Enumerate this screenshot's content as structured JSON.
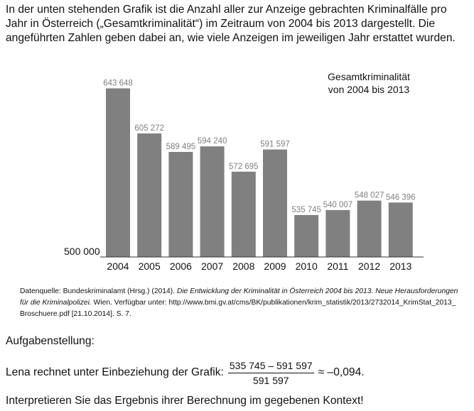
{
  "intro_text": "In der unten stehenden Grafik ist die Anzahl aller zur Anzeige gebrachten Kriminalfälle pro Jahr in Österreich („Gesamtkriminalität“) im Zeitraum von 2004 bis 2013 dargestellt. Die angeführten Zahlen geben dabei an, wie viele Anzeigen im jeweiligen Jahr erstattet wurden.",
  "chart_data": {
    "type": "bar",
    "title_lines": [
      "Gesamtkriminalität",
      "von 2004 bis 2013"
    ],
    "categories": [
      "2004",
      "2005",
      "2006",
      "2007",
      "2008",
      "2009",
      "2010",
      "2011",
      "2012",
      "2013"
    ],
    "values": [
      643648,
      605272,
      589495,
      594240,
      572695,
      591597,
      535745,
      540007,
      548027,
      546396
    ],
    "value_labels": [
      "643 648",
      "605 272",
      "589 495",
      "594 240",
      "572 695",
      "591 597",
      "535 745",
      "540 007",
      "548 027",
      "546 396"
    ],
    "baseline_label": "500 000",
    "ylim": [
      500000,
      650000
    ],
    "bar_color": "#808080",
    "label_color": "#808080",
    "xlabel": "",
    "ylabel": "",
    "grid": false
  },
  "source": {
    "prefix": "Datenquelle: Bundeskriminalamt (Hrsg.) (2014). ",
    "title_line1": "Die Entwicklung der Kriminalität in Österreich 2004 bis 2013. Neue Herausforderungen",
    "title_line2": "für die Kriminalpolizei.",
    "suffix_line2": " Wien. Verfügbar unter: http://www.bmi.gv.at/cms/BK/publikationen/krim_statistik/2013/2732014_KrimStat_2013_",
    "line3": "Broschuere.pdf [21.10.2014]. S. 7."
  },
  "task_heading": "Aufgabenstellung:",
  "formula": {
    "prefix": "Lena rechnet unter Einbeziehung der Grafik:",
    "numerator": "535 745 – 591 597",
    "denominator": "591 597",
    "result": "≈ –0,094."
  },
  "question": "Interpretieren Sie das Ergebnis ihrer Berechnung im gegebenen Kontext!"
}
